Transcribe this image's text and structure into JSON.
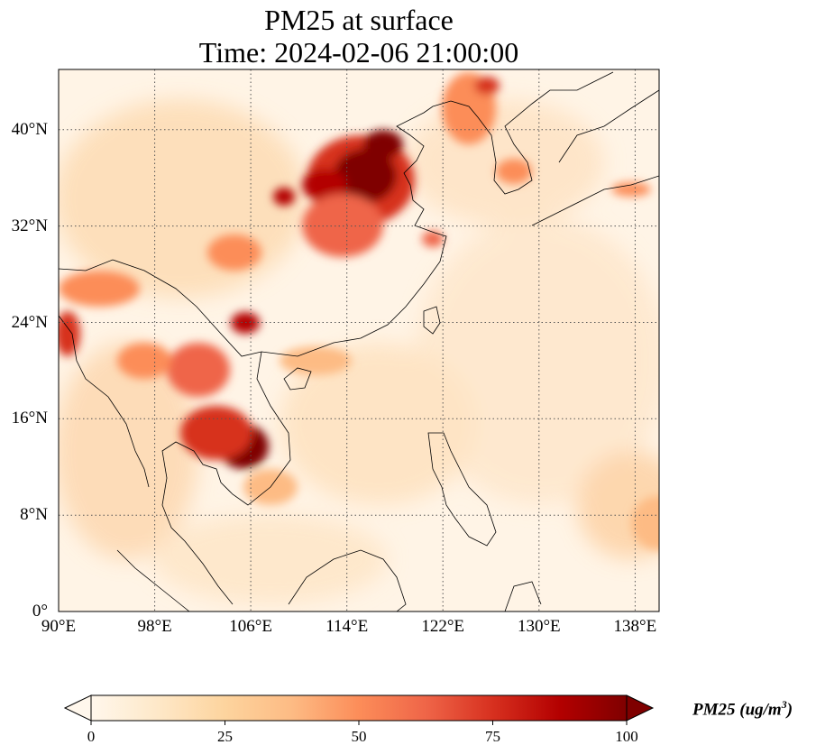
{
  "title": {
    "line1": "PM25 at surface",
    "line2": "Time: 2024-02-06 21:00:00"
  },
  "map": {
    "projection": "PlateCarree",
    "lon_range": [
      90,
      140
    ],
    "lat_range": [
      0,
      45
    ],
    "lon_ticks": [
      "90°E",
      "98°E",
      "106°E",
      "114°E",
      "122°E",
      "130°E",
      "138°E"
    ],
    "lat_ticks": [
      "0°",
      "8°N",
      "16°N",
      "24°N",
      "32°N",
      "40°N"
    ],
    "gridlines": "dotted",
    "coastlines": true,
    "borders": true
  },
  "colorbar": {
    "label_main": "PM25 (ug/m",
    "label_sup": "3",
    "label_close": ")",
    "ticks": [
      "0",
      "25",
      "50",
      "75",
      "100"
    ],
    "vmin": 0,
    "vmax": 100,
    "extend": "both",
    "colormap": "OrRd",
    "colors": [
      "#fff7ec",
      "#fee8c8",
      "#fdd49e",
      "#fdbb84",
      "#fc8d59",
      "#ef6548",
      "#d7301f",
      "#b30000",
      "#7f0000"
    ]
  }
}
